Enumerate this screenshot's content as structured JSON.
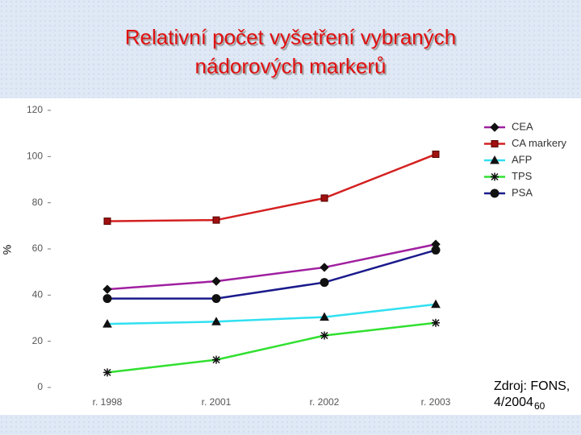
{
  "chart_data": {
    "type": "line",
    "title": "Relativní počet vyšetření vybraných nádorových markerů",
    "y_label": "%",
    "categories": [
      "r. 1998",
      "r. 2001",
      "r. 2002",
      "r. 2003"
    ],
    "series": [
      {
        "name": "CEA",
        "color": "#a020a0",
        "marker": "diamond",
        "values": [
          42.5,
          46,
          52,
          62
        ]
      },
      {
        "name": "CA markery",
        "color": "#d42020",
        "marker": "square",
        "values": [
          72,
          72.5,
          82,
          101
        ]
      },
      {
        "name": "AFP",
        "color": "#30e0f0",
        "marker": "triangle",
        "values": [
          27.5,
          28.5,
          30.5,
          36
        ]
      },
      {
        "name": "TPS",
        "color": "#30e030",
        "marker": "star",
        "values": [
          6.5,
          12,
          22.5,
          28
        ]
      },
      {
        "name": "PSA",
        "color": "#1a1a8c",
        "marker": "circle",
        "values": [
          38.5,
          38.5,
          45.5,
          59.5
        ]
      }
    ],
    "ylim": [
      0,
      120
    ],
    "yticks": [
      0,
      20,
      40,
      60,
      80,
      100,
      120
    ],
    "legend": "top-right",
    "source": [
      "Zdroj: FONS,",
      "4/2004"
    ]
  },
  "slide": {
    "page_number": "60"
  }
}
